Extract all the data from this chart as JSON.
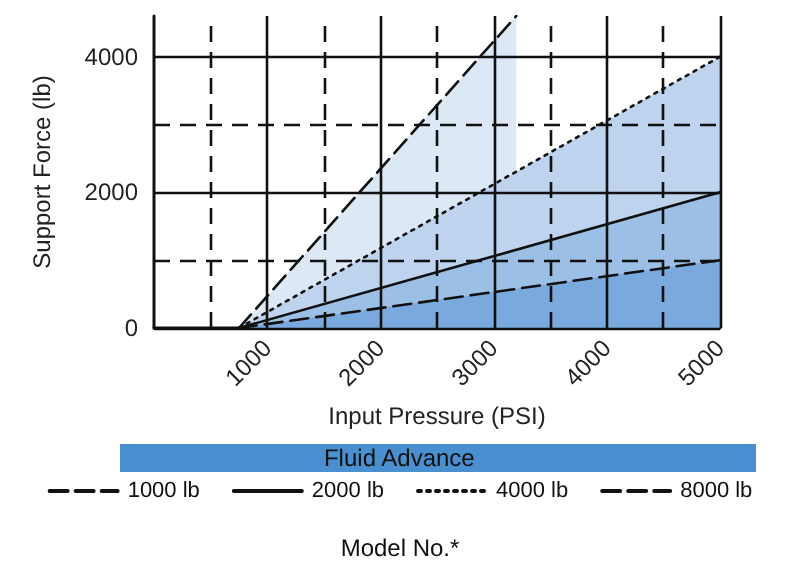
{
  "chart_data": {
    "type": "area",
    "xlabel": "Input Pressure (PSI)",
    "ylabel": "Support Force (lb)",
    "legend_title": "Fluid Advance",
    "annotations": [
      "Model No.*"
    ],
    "xlim": [
      0,
      5000
    ],
    "ylim": [
      0,
      4600
    ],
    "xticks": [
      {
        "value": 500,
        "label": null
      },
      1000,
      {
        "value": 1500,
        "label": null
      },
      2000,
      {
        "value": 2500,
        "label": null
      },
      3000,
      {
        "value": 3500,
        "label": null
      },
      4000,
      {
        "value": 4500,
        "label": null
      },
      5000
    ],
    "yticks": [
      0,
      {
        "value": 1000,
        "label": null
      },
      2000,
      {
        "value": 3000,
        "label": null
      },
      4000
    ],
    "grid": true,
    "legend": "bottom",
    "marker": "none",
    "series": [
      {
        "name": "8000 lb",
        "color": "#dce8f6",
        "line_style": "dashed",
        "x": [
          750,
          3200
        ],
        "values": [
          0,
          4600
        ]
      },
      {
        "name": "4000 lb",
        "color": "#bdd3ee",
        "line_style": "dotted",
        "x": [
          750,
          5000
        ],
        "values": [
          0,
          4000
        ]
      },
      {
        "name": "2000 lb",
        "color": "#9cbfe6",
        "line_style": "solid",
        "x": [
          750,
          5000
        ],
        "values": [
          0,
          2000
        ]
      },
      {
        "name": "1000 lb",
        "color": "#7aaadd",
        "line_style": "dashed",
        "x": [
          750,
          5000
        ],
        "values": [
          0,
          1000
        ]
      }
    ]
  }
}
